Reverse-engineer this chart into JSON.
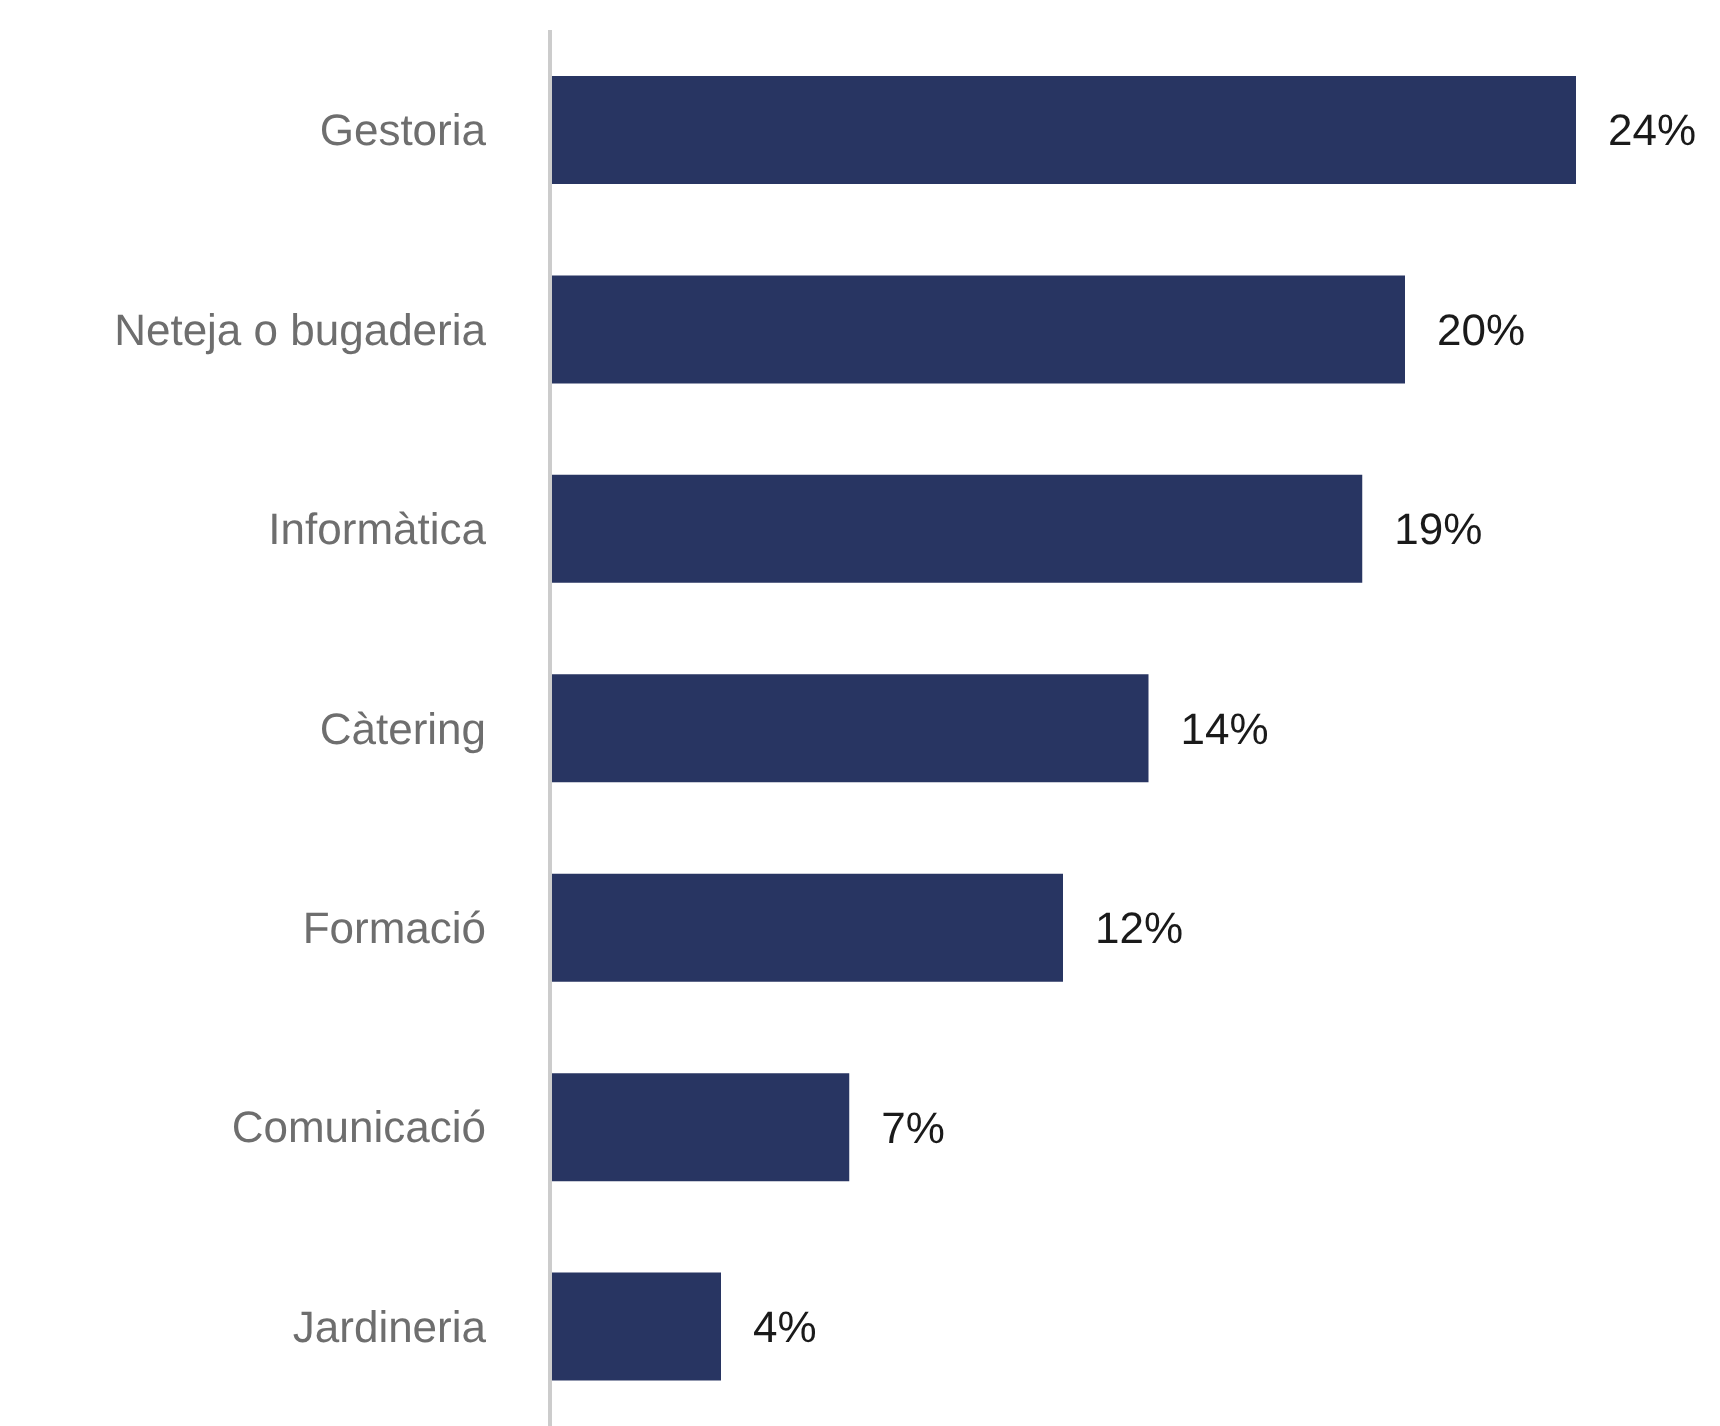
{
  "chart_data": {
    "type": "bar",
    "orientation": "horizontal",
    "categories": [
      "Gestoria",
      "Neteja o bugaderia",
      "Informàtica",
      "Càtering",
      "Formació",
      "Comunicació",
      "Jardineria"
    ],
    "values": [
      24,
      20,
      19,
      14,
      12,
      7,
      4
    ],
    "value_labels": [
      "24%",
      "20%",
      "19%",
      "14%",
      "12%",
      "7%",
      "4%"
    ],
    "color": "#283562",
    "tick_labels": "y"
  }
}
